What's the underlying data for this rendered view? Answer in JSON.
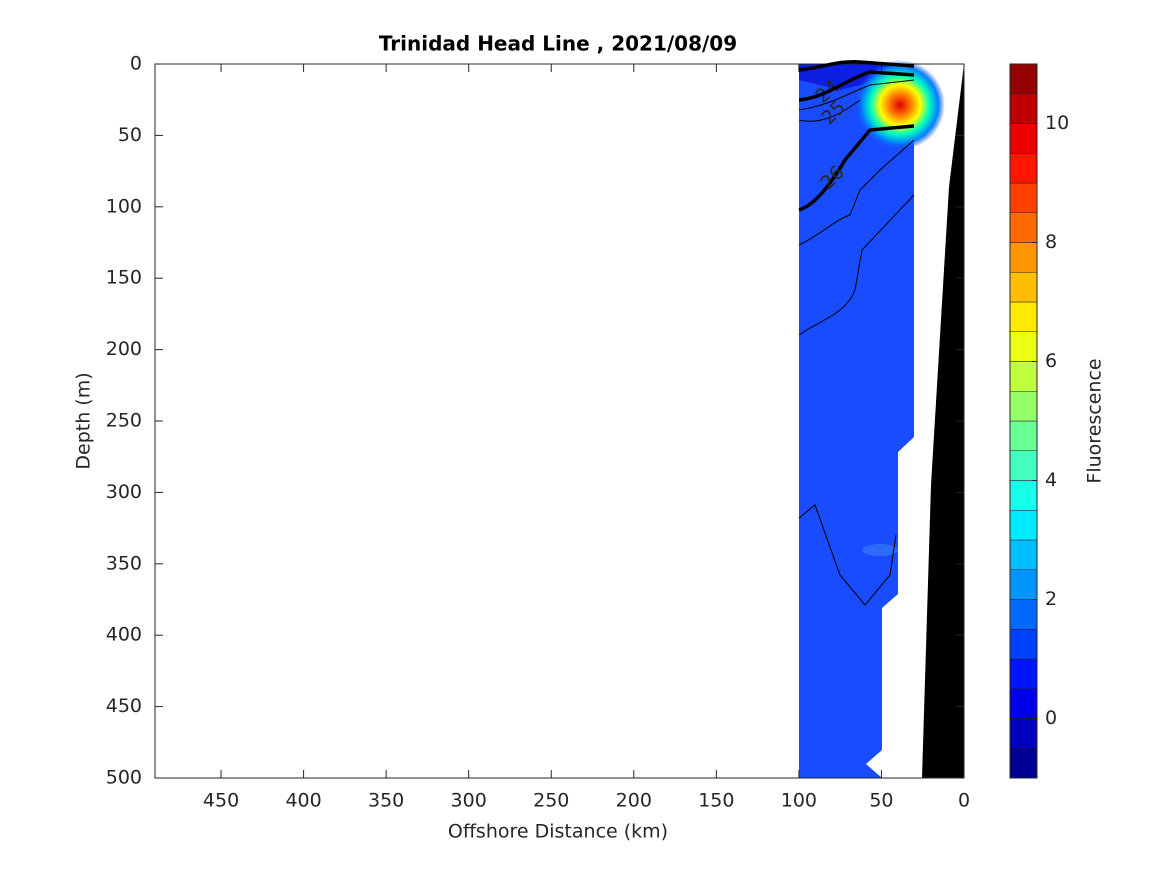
{
  "chart_data": {
    "type": "contour",
    "title": "Trinidad Head Line , 2021/08/09",
    "x_label": "Offshore Distance (km)",
    "y_label": "Depth (m)",
    "xlim": [
      490,
      0
    ],
    "xticks": [
      450,
      400,
      350,
      300,
      250,
      200,
      150,
      100,
      50,
      0
    ],
    "ylim": [
      0,
      500
    ],
    "yticks": [
      0,
      50,
      100,
      150,
      200,
      250,
      300,
      350,
      400,
      450,
      500
    ],
    "y_reversed": true,
    "contour_levels": [
      24,
      25,
      26
    ],
    "colorbar": {
      "label": "Fluorescence",
      "lim": [
        -1,
        11
      ],
      "ticks": [
        0,
        2,
        4,
        6,
        8,
        10
      ],
      "step": 0.5,
      "colormap": "jet"
    }
  }
}
